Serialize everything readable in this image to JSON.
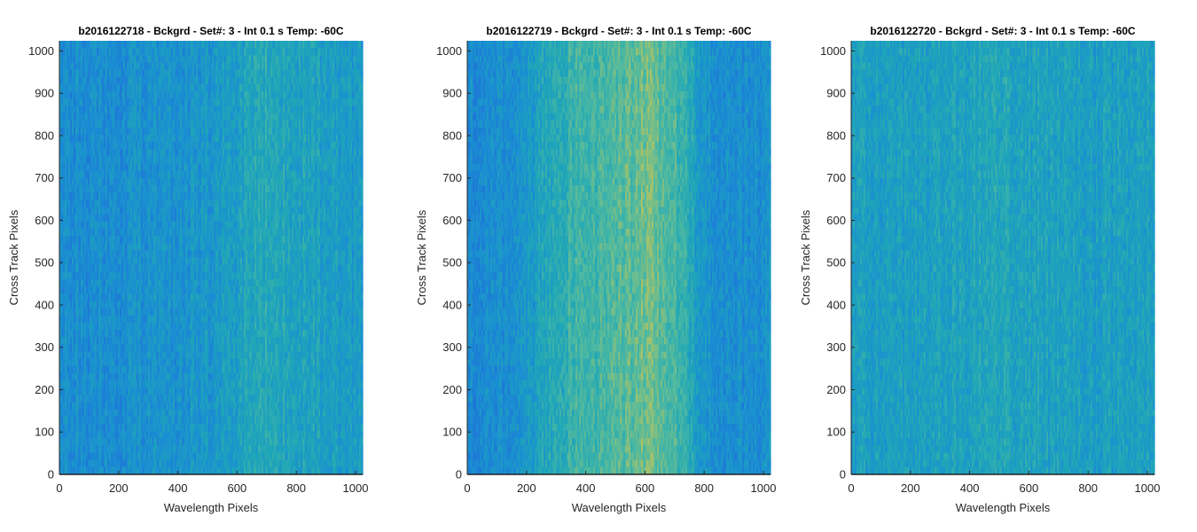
{
  "chart_data": [
    {
      "type": "heatmap",
      "title": "b2016122718 - Bckgrd - Set#: 3 - Int 0.1 s Temp: -60C",
      "xlabel": "Wavelength Pixels",
      "ylabel": "Cross Track Pixels",
      "xlim": [
        0,
        1024
      ],
      "ylim": [
        0,
        1024
      ],
      "xticks": [
        0,
        200,
        400,
        600,
        800,
        1000
      ],
      "yticks": [
        0,
        100,
        200,
        300,
        400,
        500,
        600,
        700,
        800,
        900,
        1000
      ],
      "colormap": [
        "#1f6fd8",
        "#1a8ed2",
        "#1fa6b8",
        "#4fb9a0",
        "#a6c26a",
        "#d9c04a"
      ],
      "column_intensity_profile": {
        "x": [
          0,
          100,
          200,
          300,
          400,
          500,
          600,
          650,
          700,
          800,
          900,
          1024
        ],
        "level": [
          0.22,
          0.2,
          0.2,
          0.24,
          0.25,
          0.27,
          0.32,
          0.4,
          0.42,
          0.36,
          0.33,
          0.3
        ]
      }
    },
    {
      "type": "heatmap",
      "title": "b2016122719 - Bckgrd - Set#: 3 - Int 0.1 s Temp: -60C",
      "xlabel": "Wavelength Pixels",
      "ylabel": "Cross Track Pixels",
      "xlim": [
        0,
        1024
      ],
      "ylim": [
        0,
        1024
      ],
      "xticks": [
        0,
        200,
        400,
        600,
        800,
        1000
      ],
      "yticks": [
        0,
        100,
        200,
        300,
        400,
        500,
        600,
        700,
        800,
        900,
        1000
      ],
      "colormap": [
        "#1f6fd8",
        "#1a8ed2",
        "#1fa6b8",
        "#4fb9a0",
        "#a6c26a",
        "#d9c04a"
      ],
      "column_intensity_profile": {
        "x": [
          0,
          100,
          200,
          280,
          350,
          450,
          550,
          600,
          650,
          720,
          780,
          850,
          1024
        ],
        "level": [
          0.18,
          0.2,
          0.26,
          0.42,
          0.52,
          0.55,
          0.62,
          0.7,
          0.64,
          0.52,
          0.3,
          0.22,
          0.22
        ]
      }
    },
    {
      "type": "heatmap",
      "title": "b2016122720 - Bckgrd - Set#: 3 - Int 0.1 s Temp: -60C",
      "xlabel": "Wavelength Pixels",
      "ylabel": "Cross Track Pixels",
      "xlim": [
        0,
        1024
      ],
      "ylim": [
        0,
        1024
      ],
      "xticks": [
        0,
        200,
        400,
        600,
        800,
        1000
      ],
      "yticks": [
        0,
        100,
        200,
        300,
        400,
        500,
        600,
        700,
        800,
        900,
        1000
      ],
      "colormap": [
        "#1f6fd8",
        "#1a8ed2",
        "#1fa6b8",
        "#4fb9a0",
        "#a6c26a",
        "#d9c04a"
      ],
      "column_intensity_profile": {
        "x": [
          0,
          100,
          200,
          300,
          400,
          500,
          600,
          700,
          800,
          900,
          1024
        ],
        "level": [
          0.33,
          0.34,
          0.34,
          0.35,
          0.38,
          0.4,
          0.37,
          0.35,
          0.34,
          0.34,
          0.34
        ]
      }
    }
  ]
}
